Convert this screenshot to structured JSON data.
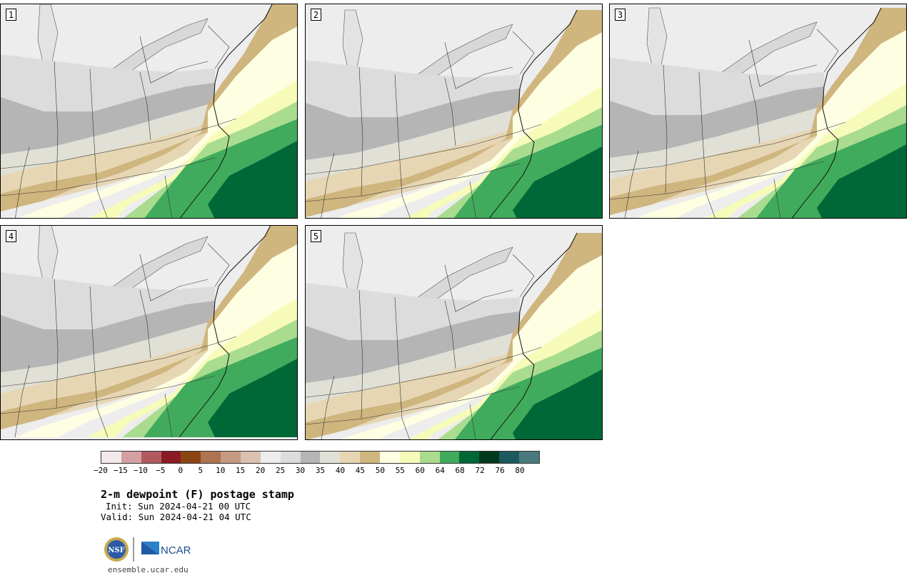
{
  "panels": [
    {
      "label": "1"
    },
    {
      "label": "2"
    },
    {
      "label": "3"
    },
    {
      "label": "4"
    },
    {
      "label": "5"
    }
  ],
  "colorbar": {
    "colors": [
      "#f4e9ea",
      "#d4a0a4",
      "#b05a60",
      "#8b1a22",
      "#8b4513",
      "#ad7452",
      "#c49a82",
      "#dcc0b0",
      "#ededed",
      "#dcdcdc",
      "#b5b5b5",
      "#e0e0d6",
      "#e6d6b4",
      "#cfb57e",
      "#fefee2",
      "#f7fbb9",
      "#a9dc8f",
      "#41ab5d",
      "#006837",
      "#00391b",
      "#1b5a5f",
      "#4a7a7e"
    ],
    "tick_labels": [
      "−20",
      "−15",
      "−10",
      "−5",
      "0",
      "5",
      "10",
      "15",
      "20",
      "25",
      "30",
      "35",
      "40",
      "45",
      "50",
      "55",
      "60",
      "64",
      "68",
      "72",
      "76",
      "80"
    ]
  },
  "title": "2-m dewpoint (F) postage stamp",
  "init": "Init: Sun 2024-04-21 00 UTC",
  "valid": "Valid: Sun 2024-04-21 04 UTC",
  "logos": {
    "nsf": "NSF",
    "ncar": "NCAR"
  },
  "site": "ensemble.ucar.edu"
}
